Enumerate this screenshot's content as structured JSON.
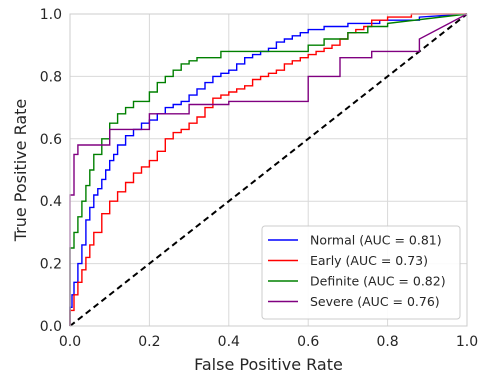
{
  "chart_data": {
    "type": "line",
    "xlabel": "False Positive Rate",
    "ylabel": "True Positive Rate",
    "xlim": [
      0,
      1
    ],
    "ylim": [
      0,
      1
    ],
    "xticks": [
      "0.0",
      "0.2",
      "0.4",
      "0.6",
      "0.8",
      "1.0"
    ],
    "yticks": [
      "0.0",
      "0.2",
      "0.4",
      "0.6",
      "0.8",
      "1.0"
    ],
    "grid": true,
    "legend_position": "bottom-right",
    "series": [
      {
        "name": "Normal (AUC = 0.81)",
        "color": "#0000ff",
        "x": [
          0.0,
          0.0,
          0.005,
          0.005,
          0.01,
          0.01,
          0.02,
          0.02,
          0.03,
          0.03,
          0.04,
          0.04,
          0.05,
          0.05,
          0.06,
          0.06,
          0.07,
          0.07,
          0.08,
          0.08,
          0.09,
          0.09,
          0.1,
          0.1,
          0.11,
          0.11,
          0.12,
          0.12,
          0.14,
          0.14,
          0.16,
          0.16,
          0.18,
          0.18,
          0.2,
          0.2,
          0.22,
          0.22,
          0.24,
          0.24,
          0.26,
          0.26,
          0.28,
          0.28,
          0.3,
          0.3,
          0.32,
          0.32,
          0.34,
          0.34,
          0.36,
          0.36,
          0.38,
          0.38,
          0.4,
          0.4,
          0.42,
          0.42,
          0.44,
          0.44,
          0.46,
          0.46,
          0.48,
          0.48,
          0.5,
          0.5,
          0.52,
          0.52,
          0.54,
          0.54,
          0.56,
          0.56,
          0.58,
          0.58,
          0.6,
          0.6,
          0.64,
          0.64,
          0.7,
          0.7,
          0.78,
          0.78,
          0.88,
          0.88,
          1.0
        ],
        "y": [
          0.0,
          0.06,
          0.06,
          0.1,
          0.1,
          0.14,
          0.14,
          0.2,
          0.2,
          0.26,
          0.26,
          0.34,
          0.34,
          0.38,
          0.38,
          0.42,
          0.42,
          0.44,
          0.44,
          0.47,
          0.47,
          0.5,
          0.5,
          0.53,
          0.53,
          0.55,
          0.55,
          0.58,
          0.58,
          0.61,
          0.61,
          0.63,
          0.63,
          0.65,
          0.65,
          0.66,
          0.66,
          0.68,
          0.68,
          0.7,
          0.7,
          0.71,
          0.71,
          0.72,
          0.72,
          0.74,
          0.74,
          0.76,
          0.76,
          0.78,
          0.78,
          0.8,
          0.8,
          0.81,
          0.81,
          0.82,
          0.82,
          0.84,
          0.84,
          0.86,
          0.86,
          0.87,
          0.87,
          0.88,
          0.88,
          0.89,
          0.89,
          0.91,
          0.91,
          0.92,
          0.92,
          0.93,
          0.93,
          0.94,
          0.94,
          0.95,
          0.95,
          0.96,
          0.96,
          0.97,
          0.97,
          0.98,
          0.98,
          0.99,
          1.0
        ]
      },
      {
        "name": "Early (AUC = 0.73)",
        "color": "#ff0000",
        "x": [
          0.0,
          0.0,
          0.01,
          0.01,
          0.02,
          0.02,
          0.03,
          0.03,
          0.04,
          0.04,
          0.05,
          0.05,
          0.06,
          0.06,
          0.08,
          0.08,
          0.1,
          0.1,
          0.12,
          0.12,
          0.14,
          0.14,
          0.16,
          0.16,
          0.18,
          0.18,
          0.2,
          0.2,
          0.22,
          0.22,
          0.24,
          0.24,
          0.26,
          0.26,
          0.28,
          0.28,
          0.3,
          0.3,
          0.32,
          0.32,
          0.34,
          0.34,
          0.36,
          0.36,
          0.38,
          0.38,
          0.4,
          0.4,
          0.42,
          0.42,
          0.44,
          0.44,
          0.46,
          0.46,
          0.48,
          0.48,
          0.5,
          0.5,
          0.52,
          0.52,
          0.54,
          0.54,
          0.56,
          0.56,
          0.58,
          0.58,
          0.6,
          0.6,
          0.62,
          0.62,
          0.64,
          0.64,
          0.66,
          0.66,
          0.68,
          0.68,
          0.7,
          0.7,
          0.72,
          0.72,
          0.74,
          0.74,
          0.76,
          0.76,
          0.8,
          0.8,
          0.86,
          0.86,
          1.0
        ],
        "y": [
          0.0,
          0.05,
          0.05,
          0.1,
          0.1,
          0.14,
          0.14,
          0.18,
          0.18,
          0.22,
          0.22,
          0.26,
          0.26,
          0.3,
          0.3,
          0.36,
          0.36,
          0.4,
          0.4,
          0.43,
          0.43,
          0.46,
          0.46,
          0.49,
          0.49,
          0.51,
          0.51,
          0.53,
          0.53,
          0.56,
          0.56,
          0.6,
          0.6,
          0.62,
          0.62,
          0.63,
          0.63,
          0.65,
          0.65,
          0.67,
          0.67,
          0.7,
          0.7,
          0.73,
          0.73,
          0.74,
          0.74,
          0.75,
          0.75,
          0.76,
          0.76,
          0.77,
          0.77,
          0.79,
          0.79,
          0.8,
          0.8,
          0.81,
          0.81,
          0.82,
          0.82,
          0.84,
          0.84,
          0.85,
          0.85,
          0.86,
          0.86,
          0.87,
          0.87,
          0.88,
          0.88,
          0.89,
          0.89,
          0.9,
          0.9,
          0.92,
          0.92,
          0.94,
          0.94,
          0.95,
          0.95,
          0.96,
          0.96,
          0.98,
          0.98,
          0.99,
          0.99,
          1.0,
          1.0
        ]
      },
      {
        "name": "Definite (AUC = 0.82)",
        "color": "#008000",
        "x": [
          0.0,
          0.0,
          0.01,
          0.01,
          0.02,
          0.02,
          0.03,
          0.03,
          0.04,
          0.04,
          0.05,
          0.05,
          0.06,
          0.06,
          0.08,
          0.08,
          0.1,
          0.1,
          0.12,
          0.12,
          0.14,
          0.14,
          0.16,
          0.16,
          0.2,
          0.2,
          0.22,
          0.22,
          0.24,
          0.24,
          0.26,
          0.26,
          0.28,
          0.28,
          0.3,
          0.3,
          0.32,
          0.32,
          0.38,
          0.38,
          0.6,
          0.6,
          0.64,
          0.64,
          0.7,
          0.7,
          0.75,
          0.75,
          0.8,
          0.8,
          1.0
        ],
        "y": [
          0.0,
          0.25,
          0.25,
          0.3,
          0.3,
          0.35,
          0.35,
          0.4,
          0.4,
          0.45,
          0.45,
          0.5,
          0.5,
          0.55,
          0.55,
          0.6,
          0.6,
          0.65,
          0.65,
          0.68,
          0.68,
          0.7,
          0.7,
          0.72,
          0.72,
          0.75,
          0.75,
          0.78,
          0.78,
          0.8,
          0.8,
          0.82,
          0.82,
          0.84,
          0.84,
          0.85,
          0.85,
          0.86,
          0.86,
          0.88,
          0.88,
          0.9,
          0.9,
          0.92,
          0.92,
          0.94,
          0.94,
          0.96,
          0.96,
          0.97,
          1.0
        ]
      },
      {
        "name": "Severe (AUC = 0.76)",
        "color": "#800080",
        "x": [
          0.0,
          0.0,
          0.01,
          0.01,
          0.02,
          0.02,
          0.03,
          0.03,
          0.1,
          0.1,
          0.2,
          0.2,
          0.3,
          0.3,
          0.4,
          0.4,
          0.6,
          0.6,
          0.68,
          0.68,
          0.76,
          0.76,
          0.88,
          0.88,
          1.0
        ],
        "y": [
          0.0,
          0.42,
          0.42,
          0.55,
          0.55,
          0.58,
          0.58,
          0.58,
          0.58,
          0.63,
          0.63,
          0.68,
          0.68,
          0.71,
          0.71,
          0.72,
          0.72,
          0.8,
          0.8,
          0.86,
          0.86,
          0.88,
          0.88,
          0.92,
          1.0
        ]
      }
    ],
    "reference_line": {
      "style": "dashed",
      "color": "#000000",
      "x": [
        0,
        1
      ],
      "y": [
        0,
        1
      ]
    }
  }
}
